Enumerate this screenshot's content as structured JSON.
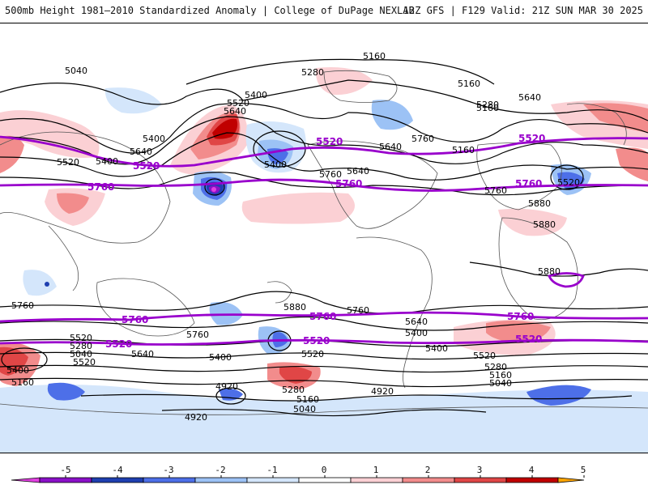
{
  "header": {
    "title": "500mb Height 1981–2010 Standardized Anomaly | College of DuPage NEXLAB",
    "run_info": "12Z GFS | F129 Valid: 21Z SUN MAR 30 2025"
  },
  "colors": {
    "contour": "#000000",
    "highlight_contour": "#9900cc",
    "coast": "#555555"
  },
  "colorbar": {
    "ticks": [
      "-5",
      "-4",
      "-3",
      "-2",
      "-1",
      "0",
      "1",
      "2",
      "3",
      "4",
      "5"
    ],
    "colors": [
      "#e040e0",
      "#8a10c8",
      "#1f3fb0",
      "#4d6fe8",
      "#9cc2f5",
      "#d4e6fb",
      "#ffffff",
      "#fbd0d4",
      "#f28c8c",
      "#e04646",
      "#c00000",
      "#ffa500"
    ]
  },
  "contour_labels": {
    "black": [
      "5160",
      "5040",
      "5280",
      "5400",
      "5520",
      "5640",
      "5160",
      "5280",
      "5400",
      "5640",
      "5520",
      "5760",
      "5640",
      "5400",
      "5160",
      "5640",
      "5760",
      "5880",
      "5880",
      "5880",
      "5760",
      "5880",
      "5760",
      "5760",
      "5640",
      "5520",
      "5280",
      "5040",
      "5640",
      "5400",
      "5520",
      "5400",
      "5160",
      "4920",
      "5280",
      "5160",
      "5040",
      "4920",
      "4920",
      "5520",
      "5280",
      "5160",
      "5040",
      "5640",
      "5760",
      "5400",
      "5160",
      "5400",
      "5520",
      "5400",
      "5520"
    ],
    "purple": [
      "5520",
      "5760",
      "5520",
      "5760",
      "5520",
      "5760",
      "5760",
      "5760",
      "5520",
      "5520",
      "5760",
      "5520"
    ]
  }
}
